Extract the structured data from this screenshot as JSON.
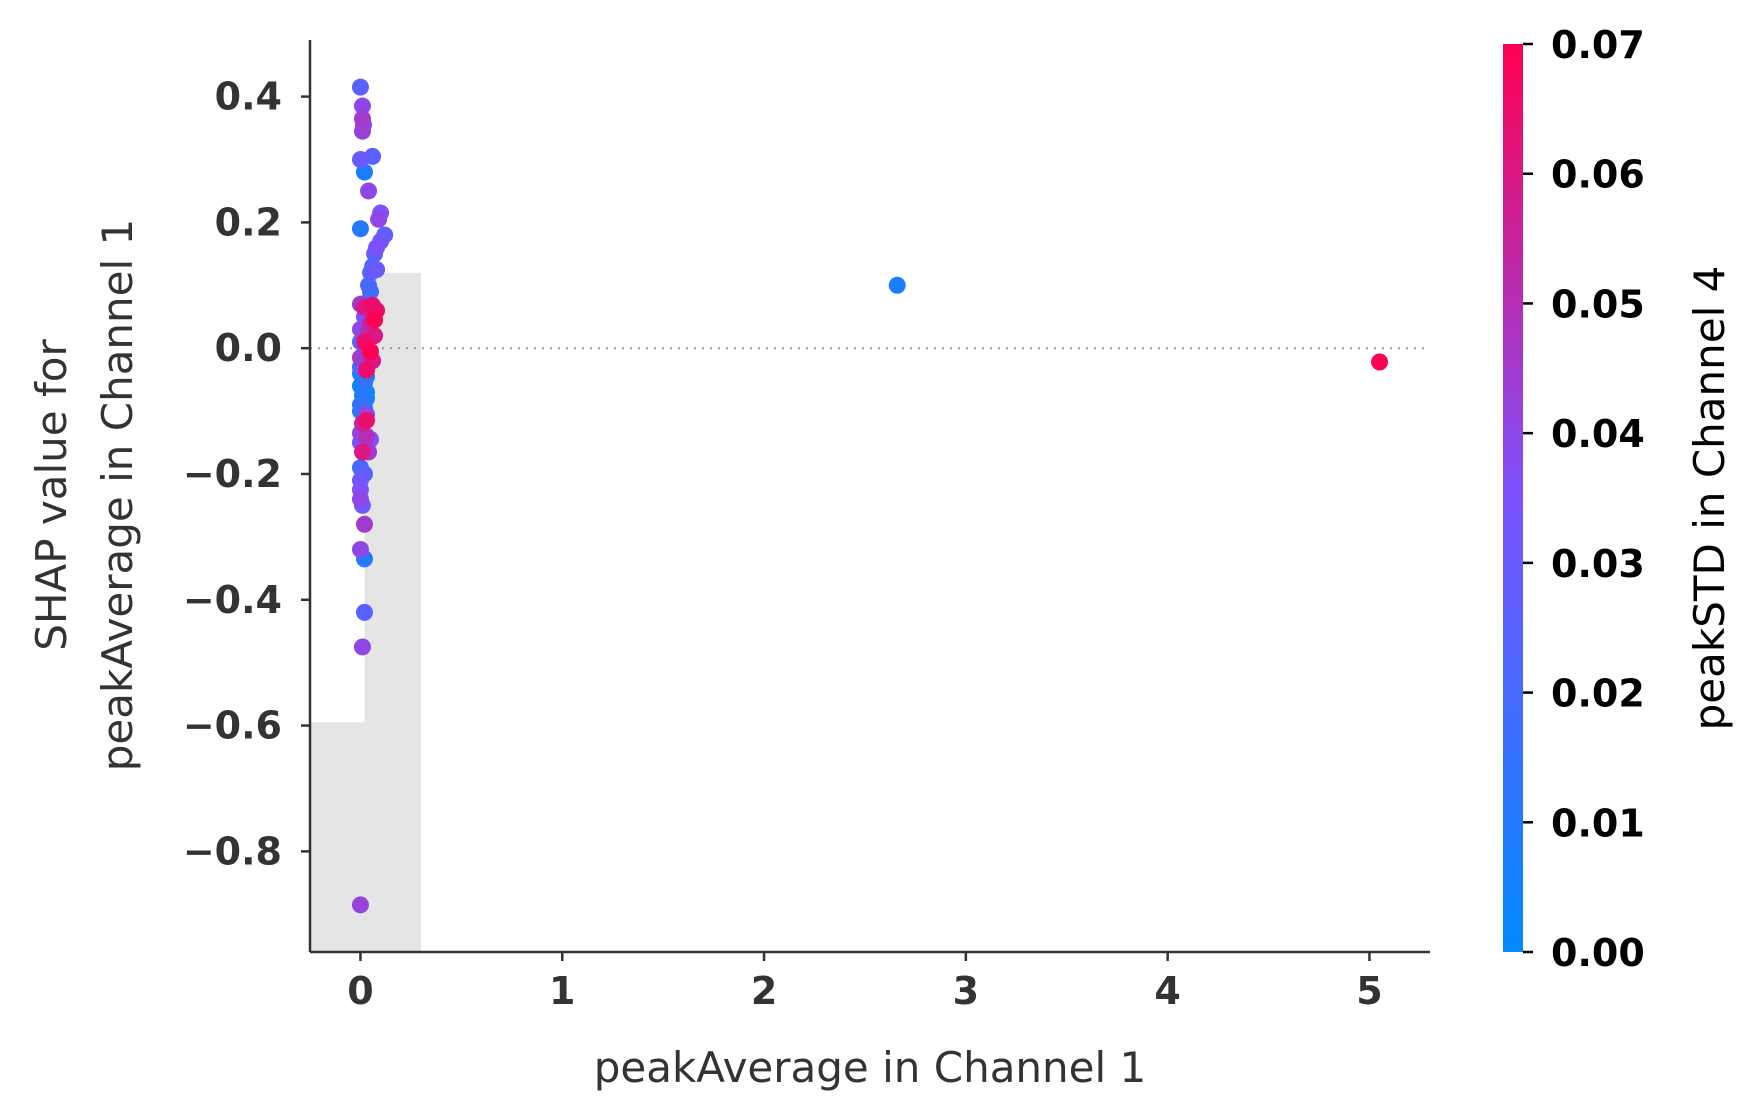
{
  "chart_data": {
    "type": "scatter",
    "title": "",
    "xlabel": "peakAverage in Channel 1",
    "ylabel_lines": [
      "SHAP value for",
      "peakAverage in Channel 1"
    ],
    "xlim": [
      -0.25,
      5.3
    ],
    "ylim": [
      -0.96,
      0.49
    ],
    "xticks": [
      0,
      1,
      2,
      3,
      4,
      5
    ],
    "xtick_labels": [
      "0",
      "1",
      "2",
      "3",
      "4",
      "5"
    ],
    "yticks": [
      0.4,
      0.2,
      0.0,
      -0.2,
      -0.4,
      -0.6,
      -0.8
    ],
    "ytick_labels": [
      "0.4",
      "0.2",
      "0.0",
      "−0.2",
      "−0.4",
      "−0.6",
      "−0.8"
    ],
    "zero_line": 0.0,
    "grid": false,
    "histogram": {
      "color": "#e5e5e5",
      "bins": [
        {
          "x0": -0.25,
          "x1": 0.02,
          "y_top": -0.595
        },
        {
          "x0": 0.02,
          "x1": 0.3,
          "y_top": 0.12
        }
      ]
    },
    "colorbar": {
      "label": "peakSTD in Channel 4",
      "min": 0.0,
      "max": 0.07,
      "ticks": [
        0.0,
        0.01,
        0.02,
        0.03,
        0.04,
        0.05,
        0.06,
        0.07
      ],
      "tick_labels": [
        "0.00",
        "0.01",
        "0.02",
        "0.03",
        "0.04",
        "0.05",
        "0.06",
        "0.07"
      ],
      "color_low": "#008afb",
      "color_mid": "#7c52ff",
      "color_high": "#ff0052"
    },
    "points": [
      {
        "x": 0.0,
        "y": 0.415,
        "c": 0.025
      },
      {
        "x": 0.01,
        "y": 0.385,
        "c": 0.04
      },
      {
        "x": 0.01,
        "y": 0.365,
        "c": 0.045
      },
      {
        "x": 0.015,
        "y": 0.355,
        "c": 0.04
      },
      {
        "x": 0.01,
        "y": 0.345,
        "c": 0.043
      },
      {
        "x": 0.0,
        "y": 0.3,
        "c": 0.03
      },
      {
        "x": 0.06,
        "y": 0.305,
        "c": 0.025
      },
      {
        "x": 0.02,
        "y": 0.28,
        "c": 0.008
      },
      {
        "x": 0.04,
        "y": 0.25,
        "c": 0.04
      },
      {
        "x": 0.1,
        "y": 0.215,
        "c": 0.035
      },
      {
        "x": 0.09,
        "y": 0.205,
        "c": 0.04
      },
      {
        "x": 0.0,
        "y": 0.19,
        "c": 0.01
      },
      {
        "x": 0.12,
        "y": 0.18,
        "c": 0.028
      },
      {
        "x": 0.1,
        "y": 0.17,
        "c": 0.03
      },
      {
        "x": 0.08,
        "y": 0.16,
        "c": 0.035
      },
      {
        "x": 0.07,
        "y": 0.15,
        "c": 0.025
      },
      {
        "x": 0.06,
        "y": 0.13,
        "c": 0.022
      },
      {
        "x": 0.05,
        "y": 0.12,
        "c": 0.025
      },
      {
        "x": 0.08,
        "y": 0.125,
        "c": 0.03
      },
      {
        "x": 0.04,
        "y": 0.1,
        "c": 0.02
      },
      {
        "x": 0.05,
        "y": 0.09,
        "c": 0.018
      },
      {
        "x": 0.04,
        "y": 0.075,
        "c": 0.015
      },
      {
        "x": 0.0,
        "y": 0.07,
        "c": 0.045
      },
      {
        "x": 0.02,
        "y": 0.065,
        "c": 0.06
      },
      {
        "x": 0.06,
        "y": 0.068,
        "c": 0.065
      },
      {
        "x": 0.08,
        "y": 0.06,
        "c": 0.065
      },
      {
        "x": 0.02,
        "y": 0.05,
        "c": 0.035
      },
      {
        "x": 0.07,
        "y": 0.045,
        "c": 0.07
      },
      {
        "x": 0.05,
        "y": 0.04,
        "c": 0.055
      },
      {
        "x": 0.0,
        "y": 0.03,
        "c": 0.04
      },
      {
        "x": 0.04,
        "y": 0.025,
        "c": 0.05
      },
      {
        "x": 0.07,
        "y": 0.02,
        "c": 0.06
      },
      {
        "x": 0.0,
        "y": 0.01,
        "c": 0.025
      },
      {
        "x": 0.02,
        "y": 0.01,
        "c": 0.065
      },
      {
        "x": 0.05,
        "y": -0.005,
        "c": 0.07
      },
      {
        "x": 0.02,
        "y": -0.01,
        "c": 0.03
      },
      {
        "x": 0.0,
        "y": -0.015,
        "c": 0.045
      },
      {
        "x": 0.06,
        "y": -0.02,
        "c": 0.06
      },
      {
        "x": 0.03,
        "y": -0.025,
        "c": 0.035
      },
      {
        "x": 0.0,
        "y": -0.03,
        "c": 0.02
      },
      {
        "x": 0.03,
        "y": -0.035,
        "c": 0.065
      },
      {
        "x": 0.0,
        "y": -0.04,
        "c": 0.008
      },
      {
        "x": 0.03,
        "y": -0.045,
        "c": 0.005
      },
      {
        "x": 0.02,
        "y": -0.055,
        "c": 0.012
      },
      {
        "x": 0.0,
        "y": -0.06,
        "c": 0.004
      },
      {
        "x": 0.03,
        "y": -0.07,
        "c": 0.003
      },
      {
        "x": 0.01,
        "y": -0.075,
        "c": 0.009
      },
      {
        "x": 0.03,
        "y": -0.08,
        "c": 0.006
      },
      {
        "x": 0.0,
        "y": -0.09,
        "c": 0.015
      },
      {
        "x": 0.02,
        "y": -0.095,
        "c": 0.002
      },
      {
        "x": 0.0,
        "y": -0.1,
        "c": 0.012
      },
      {
        "x": 0.03,
        "y": -0.105,
        "c": 0.04
      },
      {
        "x": 0.01,
        "y": -0.12,
        "c": 0.055
      },
      {
        "x": 0.03,
        "y": -0.115,
        "c": 0.065
      },
      {
        "x": 0.0,
        "y": -0.135,
        "c": 0.04
      },
      {
        "x": 0.03,
        "y": -0.14,
        "c": 0.05
      },
      {
        "x": 0.0,
        "y": -0.15,
        "c": 0.035
      },
      {
        "x": 0.05,
        "y": -0.145,
        "c": 0.035
      },
      {
        "x": 0.01,
        "y": -0.165,
        "c": 0.06
      },
      {
        "x": 0.04,
        "y": -0.165,
        "c": 0.045
      },
      {
        "x": 0.0,
        "y": -0.19,
        "c": 0.02
      },
      {
        "x": 0.02,
        "y": -0.2,
        "c": 0.025
      },
      {
        "x": 0.0,
        "y": -0.21,
        "c": 0.03
      },
      {
        "x": 0.0,
        "y": -0.225,
        "c": 0.035
      },
      {
        "x": 0.0,
        "y": -0.24,
        "c": 0.04
      },
      {
        "x": 0.01,
        "y": -0.25,
        "c": 0.03
      },
      {
        "x": 0.02,
        "y": -0.28,
        "c": 0.045
      },
      {
        "x": 0.0,
        "y": -0.32,
        "c": 0.04
      },
      {
        "x": 0.02,
        "y": -0.335,
        "c": 0.01
      },
      {
        "x": 0.02,
        "y": -0.42,
        "c": 0.025
      },
      {
        "x": 0.01,
        "y": -0.475,
        "c": 0.04
      },
      {
        "x": 0.0,
        "y": -0.885,
        "c": 0.042
      },
      {
        "x": 2.66,
        "y": 0.1,
        "c": 0.008
      },
      {
        "x": 5.05,
        "y": -0.022,
        "c": 0.07
      }
    ]
  }
}
